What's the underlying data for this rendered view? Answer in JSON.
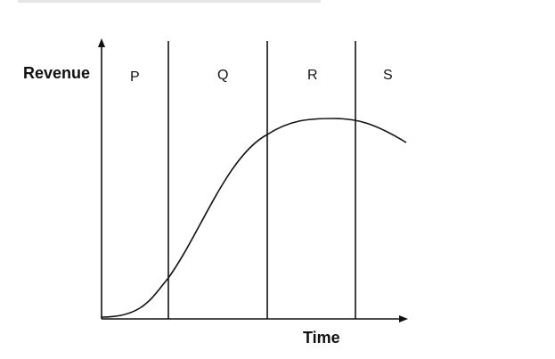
{
  "axes": {
    "y_label": "Revenue",
    "x_label": "Time"
  },
  "stages": [
    "P",
    "Q",
    "R",
    "S"
  ],
  "curve": {
    "shape": "S-curve rising then declining"
  },
  "colors": {
    "ink": "#111111",
    "background": "#ffffff"
  }
}
